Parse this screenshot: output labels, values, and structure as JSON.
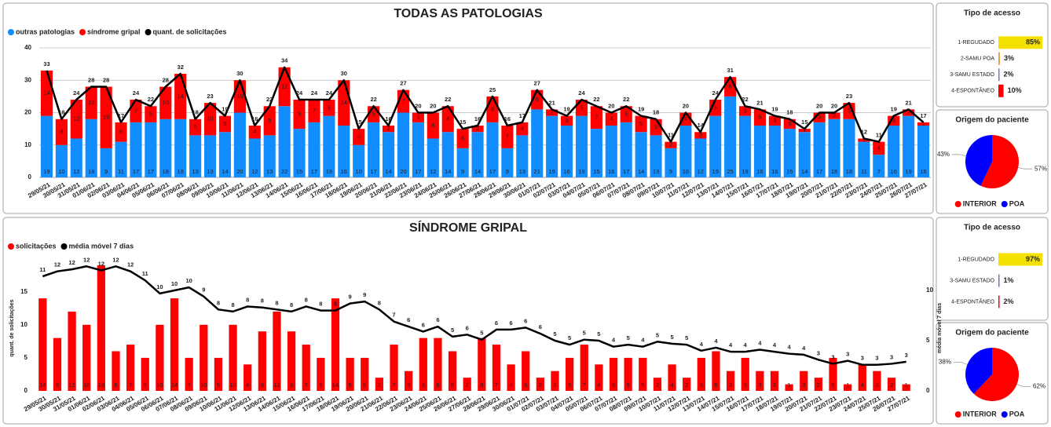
{
  "chart_data": [
    {
      "type": "bar",
      "title": "TODAS AS PATOLOGIAS",
      "stacked": true,
      "grid": true,
      "categories": [
        "29/05/21",
        "30/05/21",
        "31/05/21",
        "01/06/21",
        "02/06/21",
        "03/06/21",
        "04/06/21",
        "05/06/21",
        "06/06/21",
        "07/06/21",
        "08/06/21",
        "09/06/21",
        "10/06/21",
        "11/06/21",
        "12/06/21",
        "13/06/21",
        "14/06/21",
        "15/06/21",
        "16/06/21",
        "17/06/21",
        "18/06/21",
        "19/06/21",
        "20/06/21",
        "21/06/21",
        "22/06/21",
        "23/06/21",
        "24/06/21",
        "25/06/21",
        "26/06/21",
        "27/06/21",
        "28/06/21",
        "29/06/21",
        "30/06/21",
        "01/07/21",
        "02/07/21",
        "03/07/21",
        "04/07/21",
        "05/07/21",
        "06/07/21",
        "07/07/21",
        "08/07/21",
        "09/07/21",
        "10/07/21",
        "11/07/21",
        "12/07/21",
        "13/07/21",
        "14/07/21",
        "15/07/21",
        "16/07/21",
        "17/07/21",
        "18/07/21",
        "19/07/21",
        "20/07/21",
        "21/07/21",
        "22/07/21",
        "23/07/21",
        "24/07/21",
        "25/07/21",
        "26/07/21",
        "27/07/21"
      ],
      "ylim": [
        0,
        40
      ],
      "yticks": [
        0,
        10,
        20,
        30,
        40
      ],
      "series": [
        {
          "name": "outras patologias",
          "color": "#118dff",
          "values": [
            19,
            10,
            12,
            18,
            9,
            11,
            17,
            17,
            18,
            18,
            13,
            13,
            14,
            20,
            12,
            13,
            22,
            15,
            17,
            19,
            16,
            10,
            17,
            14,
            20,
            17,
            12,
            14,
            9,
            14,
            17,
            9,
            13,
            21,
            19,
            16,
            19,
            15,
            16,
            17,
            14,
            13,
            9,
            16,
            12,
            19,
            25,
            19,
            16,
            16,
            15,
            14,
            17,
            18,
            18,
            11,
            7,
            16,
            19,
            16
          ]
        },
        {
          "name": "síndrome gripal",
          "color": "#ff0000",
          "values": [
            14,
            8,
            12,
            10,
            19,
            6,
            7,
            5,
            10,
            14,
            5,
            10,
            5,
            10,
            4,
            9,
            12,
            9,
            7,
            5,
            14,
            5,
            5,
            2,
            7,
            3,
            8,
            8,
            6,
            2,
            8,
            7,
            4,
            6,
            2,
            3,
            5,
            7,
            4,
            5,
            5,
            5,
            2,
            4,
            2,
            5,
            6,
            3,
            5,
            3,
            3,
            1,
            3,
            2,
            5,
            1,
            4,
            3,
            2,
            1
          ]
        },
        {
          "name": "quant. de solicitações",
          "color": "#000000",
          "type": "line",
          "values": [
            33,
            18,
            24,
            28,
            28,
            17,
            24,
            22,
            28,
            32,
            18,
            23,
            19,
            30,
            16,
            22,
            34,
            24,
            24,
            24,
            30,
            15,
            22,
            16,
            27,
            20,
            20,
            22,
            15,
            16,
            25,
            16,
            17,
            27,
            21,
            19,
            24,
            22,
            20,
            22,
            19,
            18,
            11,
            20,
            14,
            24,
            31,
            22,
            21,
            19,
            18,
            15,
            20,
            20,
            23,
            12,
            11,
            19,
            21,
            17
          ]
        }
      ]
    },
    {
      "type": "hbar",
      "title": "Tipo de acesso",
      "categories": [
        "1-REGUDADO",
        "2-SAMU POA",
        "3-SAMU ESTADO",
        "4-ESPONTÂNEO"
      ],
      "values": [
        85,
        3,
        2,
        10
      ],
      "value_labels": [
        "85%",
        "3%",
        "2%",
        "10%"
      ],
      "colors": [
        "#f5e100",
        "#e8a33a",
        "#8a6fb0",
        "#ff0000"
      ]
    },
    {
      "type": "pie",
      "title": "Origem do paciente",
      "categories": [
        "INTERIOR",
        "POA"
      ],
      "values": [
        57,
        43
      ],
      "value_labels": [
        "57%",
        "43%"
      ],
      "colors": [
        "#ff0000",
        "#0000ff"
      ]
    },
    {
      "type": "bar",
      "title": "SÍNDROME GRIPAL",
      "grid": false,
      "ylabel": "quant. de solicitações",
      "y2label": "média móvel 7 dias",
      "categories": [
        "29/05/21",
        "30/05/21",
        "31/05/21",
        "01/06/21",
        "02/06/21",
        "03/06/21",
        "04/06/21",
        "05/06/21",
        "06/06/21",
        "07/06/21",
        "08/06/21",
        "09/06/21",
        "10/06/21",
        "11/06/21",
        "12/06/21",
        "13/06/21",
        "14/06/21",
        "15/06/21",
        "16/06/21",
        "17/06/21",
        "18/06/21",
        "19/06/21",
        "20/06/21",
        "21/06/21",
        "22/06/21",
        "23/06/21",
        "24/06/21",
        "25/06/21",
        "26/06/21",
        "27/06/21",
        "28/06/21",
        "29/06/21",
        "30/06/21",
        "01/07/21",
        "02/07/21",
        "03/07/21",
        "04/07/21",
        "05/07/21",
        "06/07/21",
        "07/07/21",
        "08/07/21",
        "09/07/21",
        "10/07/21",
        "11/07/21",
        "12/07/21",
        "13/07/21",
        "14/07/21",
        "15/07/21",
        "16/07/21",
        "17/07/21",
        "18/07/21",
        "19/07/21",
        "20/07/21",
        "21/07/21",
        "22/07/21",
        "23/07/21",
        "24/07/21",
        "25/07/21",
        "26/07/21",
        "27/07/21"
      ],
      "ylim": [
        0,
        19
      ],
      "yticks": [
        0,
        5,
        10,
        15
      ],
      "y2lim": [
        0,
        12.5
      ],
      "y2ticks": [
        0,
        5,
        10
      ],
      "series": [
        {
          "name": "solicitações",
          "color": "#ff0000",
          "values": [
            14,
            8,
            12,
            10,
            19,
            6,
            7,
            5,
            10,
            14,
            5,
            10,
            5,
            10,
            4,
            9,
            12,
            9,
            7,
            5,
            14,
            5,
            5,
            2,
            7,
            3,
            8,
            8,
            6,
            2,
            8,
            7,
            4,
            6,
            2,
            3,
            5,
            7,
            4,
            5,
            5,
            5,
            2,
            4,
            2,
            5,
            6,
            3,
            5,
            3,
            3,
            1,
            3,
            2,
            5,
            1,
            4,
            3,
            2,
            1
          ]
        },
        {
          "name": "média móvel 7 dias",
          "color": "#000000",
          "type": "line",
          "axis": "y2",
          "values": [
            11.4,
            11.9,
            12.1,
            12.4,
            12.0,
            12.4,
            11.9,
            11.0,
            9.7,
            10.0,
            10.3,
            9.4,
            8.1,
            7.9,
            8.4,
            8.3,
            8.1,
            7.9,
            8.4,
            8.0,
            8.0,
            8.7,
            8.9,
            8.1,
            6.9,
            6.4,
            5.9,
            6.4,
            5.4,
            5.6,
            5.1,
            6.1,
            6.1,
            6.3,
            5.7,
            5.0,
            4.6,
            5.1,
            5.0,
            4.4,
            4.6,
            4.4,
            4.9,
            4.7,
            4.6,
            4.0,
            4.3,
            3.9,
            3.9,
            4.1,
            3.9,
            3.7,
            3.6,
            3.1,
            2.7,
            3.0,
            2.6,
            2.6,
            2.7,
            2.9
          ],
          "value_labels": [
            "11",
            "12",
            "12",
            "12",
            "12",
            "12",
            "12",
            "11",
            "10",
            "10",
            "10",
            "9",
            "8",
            "8",
            "8",
            "8",
            "8",
            "8",
            "8",
            "8",
            "8",
            "9",
            "9",
            "8",
            "7",
            "6",
            "6",
            "6",
            "5",
            "6",
            "5",
            "6",
            "6",
            "6",
            "6",
            "5",
            "5",
            "5",
            "5",
            "4",
            "5",
            "4",
            "5",
            "5",
            "5",
            "4",
            "4",
            "4",
            "4",
            "4",
            "4",
            "4",
            "4",
            "3",
            "3",
            "3",
            "3",
            "3",
            "3",
            "3"
          ]
        }
      ]
    },
    {
      "type": "hbar",
      "title": "Tipo de acesso",
      "categories": [
        "1-REGUDADO",
        "3-SAMU ESTADO",
        "4-ESPONTÂNEO"
      ],
      "values": [
        97,
        1,
        2
      ],
      "value_labels": [
        "97%",
        "1%",
        "2%"
      ],
      "colors": [
        "#f5e100",
        "#6f6fd0",
        "#ff0000"
      ]
    },
    {
      "type": "pie",
      "title": "Origem do paciente",
      "categories": [
        "INTERIOR",
        "POA"
      ],
      "values": [
        62,
        38
      ],
      "value_labels": [
        "62%",
        "38%"
      ],
      "colors": [
        "#ff0000",
        "#0000ff"
      ]
    }
  ]
}
